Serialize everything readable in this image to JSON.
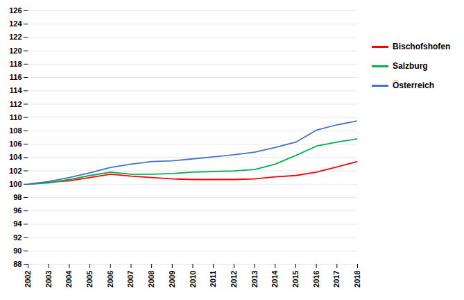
{
  "chart_data": {
    "type": "line",
    "x": [
      2002,
      2003,
      2004,
      2005,
      2006,
      2007,
      2008,
      2009,
      2010,
      2011,
      2012,
      2013,
      2014,
      2015,
      2016,
      2017,
      2018
    ],
    "xlim": [
      2002,
      2018
    ],
    "xticks": [
      2002,
      2003,
      2004,
      2005,
      2006,
      2007,
      2008,
      2009,
      2010,
      2011,
      2012,
      2013,
      2014,
      2015,
      2016,
      2017,
      2018
    ],
    "series": [
      {
        "name": "Bischofshofen",
        "color": "#ff0000",
        "values": [
          100.0,
          100.3,
          100.5,
          101.0,
          101.5,
          101.2,
          101.0,
          100.8,
          100.7,
          100.7,
          100.7,
          100.8,
          101.1,
          101.3,
          101.8,
          102.6,
          103.4
        ]
      },
      {
        "name": "Salzburg",
        "color": "#00b050",
        "values": [
          100.0,
          100.2,
          100.7,
          101.3,
          101.8,
          101.5,
          101.5,
          101.6,
          101.8,
          101.9,
          102.0,
          102.2,
          103.0,
          104.3,
          105.7,
          106.3,
          106.8
        ]
      },
      {
        "name": "Österreich",
        "color": "#4472c4",
        "values": [
          100.0,
          100.4,
          101.0,
          101.7,
          102.5,
          103.0,
          103.4,
          103.5,
          103.8,
          104.1,
          104.4,
          104.8,
          105.5,
          106.3,
          108.1,
          108.9,
          109.5
        ]
      }
    ],
    "ylim": [
      88,
      126
    ],
    "yticks": [
      88,
      90,
      92,
      94,
      96,
      98,
      100,
      102,
      104,
      106,
      108,
      110,
      112,
      114,
      116,
      118,
      120,
      122,
      124,
      126
    ],
    "grid": true,
    "legend": "right"
  }
}
